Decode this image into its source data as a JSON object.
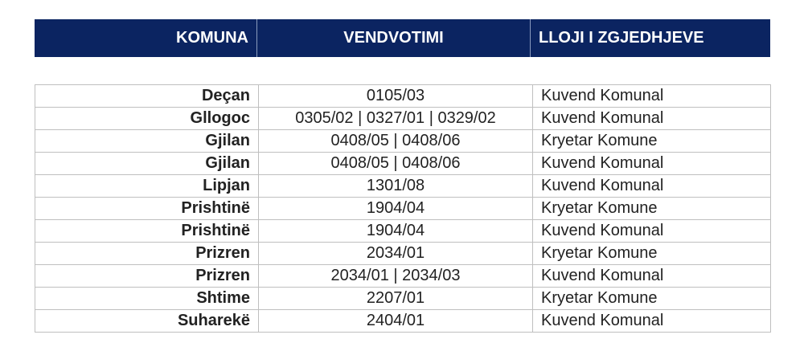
{
  "header": {
    "komuna": "KOMUNA",
    "vendvotimi": "VENDVOTIMI",
    "lloji": "LLOJI I ZGJEDHJEVE"
  },
  "rows": [
    {
      "komuna": "Deçan",
      "vendvotimi": "0105/03",
      "lloji": "Kuvend Komunal"
    },
    {
      "komuna": "Gllogoc",
      "vendvotimi": "0305/02 | 0327/01 | 0329/02",
      "lloji": "Kuvend Komunal"
    },
    {
      "komuna": "Gjilan",
      "vendvotimi": "0408/05 | 0408/06",
      "lloji": "Kryetar Komune"
    },
    {
      "komuna": "Gjilan",
      "vendvotimi": "0408/05 | 0408/06",
      "lloji": "Kuvend Komunal"
    },
    {
      "komuna": "Lipjan",
      "vendvotimi": "1301/08",
      "lloji": "Kuvend Komunal"
    },
    {
      "komuna": "Prishtinë",
      "vendvotimi": "1904/04",
      "lloji": "Kryetar Komune"
    },
    {
      "komuna": "Prishtinë",
      "vendvotimi": "1904/04",
      "lloji": "Kuvend Komunal"
    },
    {
      "komuna": "Prizren",
      "vendvotimi": "2034/01",
      "lloji": "Kryetar Komune"
    },
    {
      "komuna": "Prizren",
      "vendvotimi": "2034/01 | 2034/03",
      "lloji": "Kuvend Komunal"
    },
    {
      "komuna": "Shtime",
      "vendvotimi": "2207/01",
      "lloji": "Kryetar Komune"
    },
    {
      "komuna": "Suharekë",
      "vendvotimi": "2404/01",
      "lloji": "Kuvend Komunal"
    }
  ],
  "colors": {
    "header_bg": "#0b2461",
    "header_text": "#ffffff",
    "border": "#bfbfbf"
  }
}
